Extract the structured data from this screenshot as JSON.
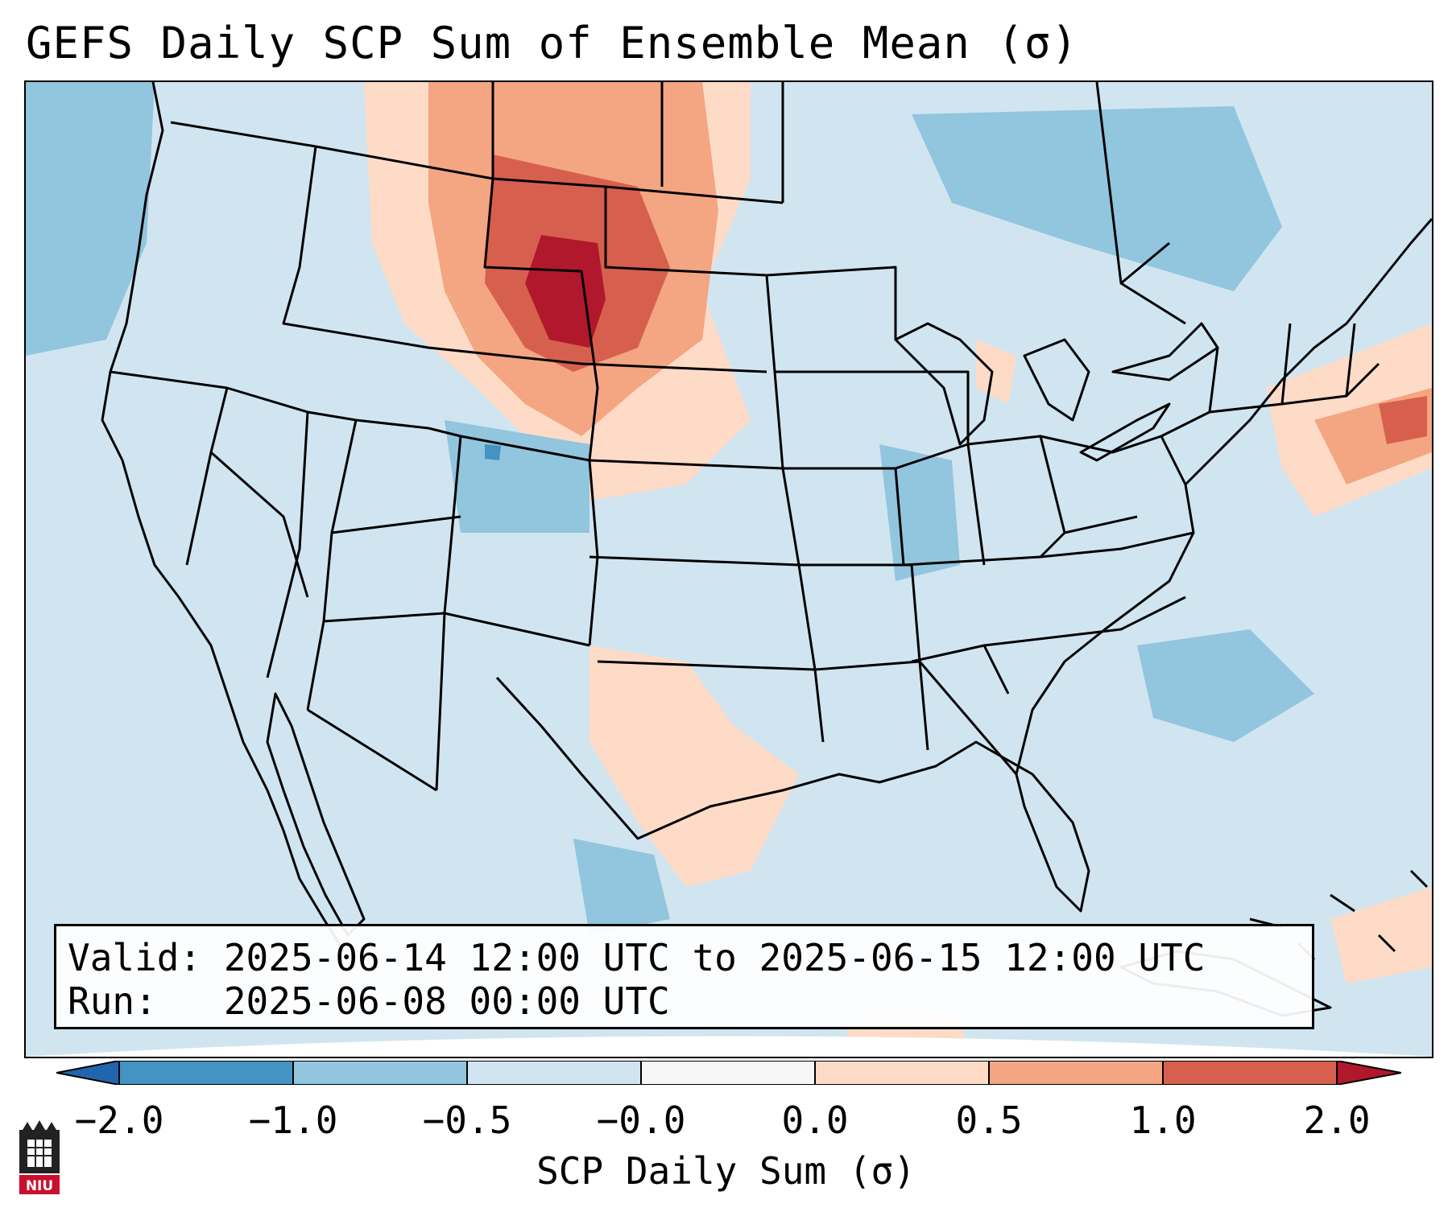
{
  "title": "GEFS Daily SCP Sum of Ensemble Mean (σ)",
  "info": {
    "valid": "Valid: 2025-06-14 12:00 UTC to 2025-06-15 12:00 UTC",
    "run": "Run:   2025-06-08 00:00 UTC"
  },
  "colorbar": {
    "label": "SCP Daily Sum (σ)",
    "ticks": [
      "−2.0",
      "−1.0",
      "−0.5",
      "−0.0",
      "0.0",
      "0.5",
      "1.0",
      "2.0"
    ],
    "bins": [
      {
        "range": "<-2",
        "color": "#2166ac"
      },
      {
        "range": "-2 to -1",
        "color": "#4393c3"
      },
      {
        "range": "-1 to -0.5",
        "color": "#92c5de"
      },
      {
        "range": "-0.5 to 0",
        "color": "#d1e5f0"
      },
      {
        "range": "0 to 0",
        "color": "#f7f7f7"
      },
      {
        "range": "0 to 0.5",
        "color": "#fddbc7"
      },
      {
        "range": "0.5 to 1",
        "color": "#f4a582"
      },
      {
        "range": "1 to 2",
        "color": "#d6604d"
      },
      {
        "range": ">2",
        "color": "#b2182b"
      }
    ]
  },
  "logo": {
    "text": "NIU",
    "color": "#c8102e"
  }
}
